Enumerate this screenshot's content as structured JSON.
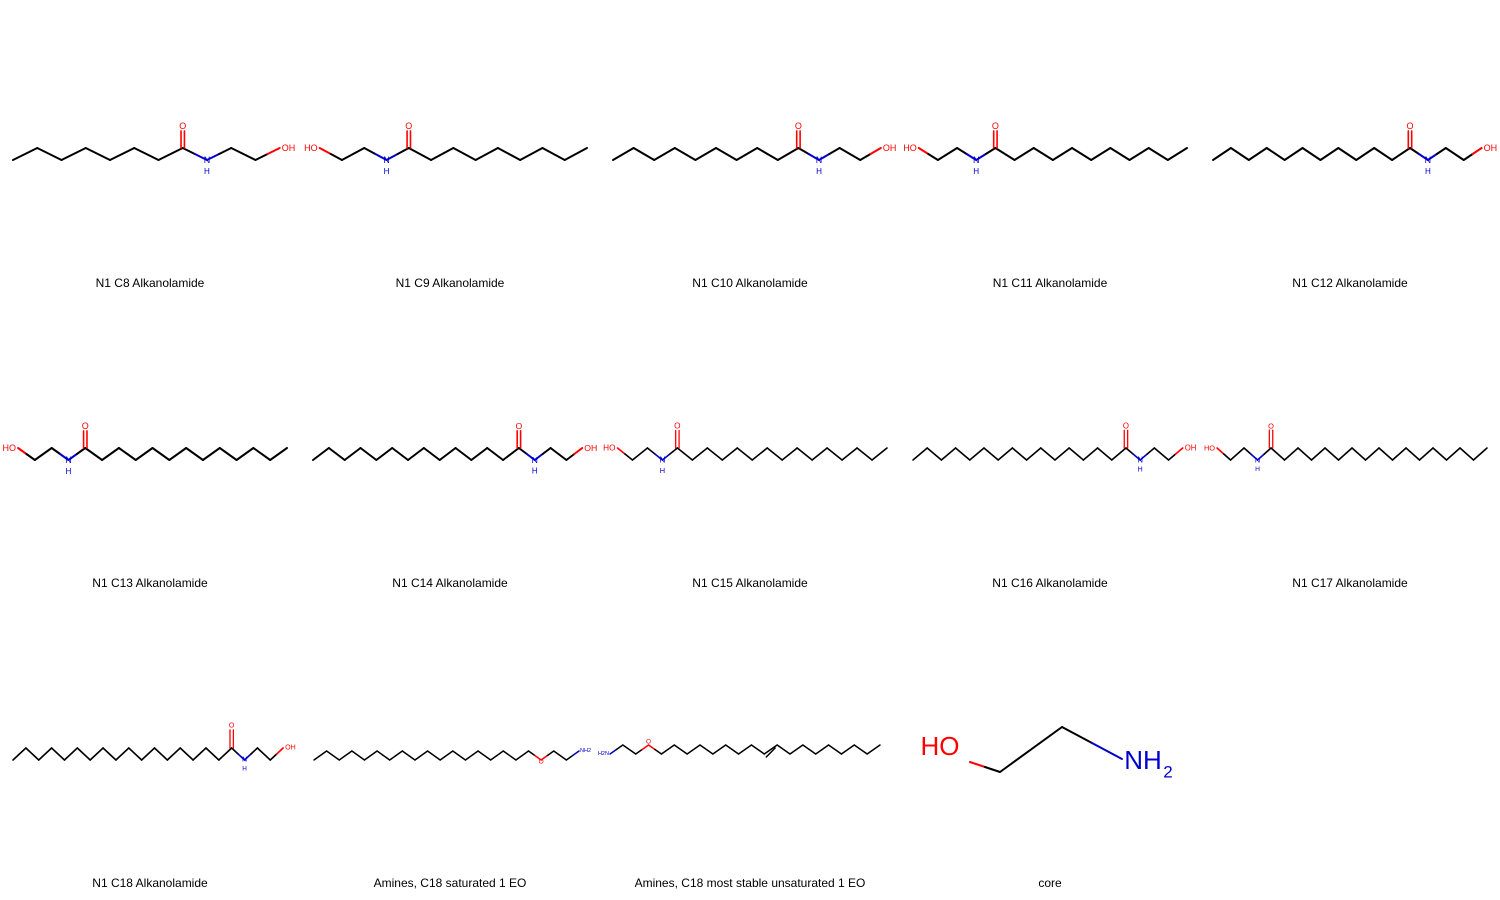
{
  "colors": {
    "bond": "#000000",
    "oxygen": "#ff0000",
    "nitrogen": "#0000cc",
    "background": "#ffffff"
  },
  "molecules": [
    {
      "legend": "N1 C8 Alkanolamide",
      "atom_labels": [
        "O",
        "H",
        "N",
        "OH"
      ]
    },
    {
      "legend": "N1 C9 Alkanolamide",
      "atom_labels": [
        "HO",
        "H",
        "N",
        "O"
      ]
    },
    {
      "legend": "N1 C10 Alkanolamide",
      "atom_labels": [
        "O",
        "H",
        "N",
        "OH"
      ]
    },
    {
      "legend": "N1 C11 Alkanolamide",
      "atom_labels": [
        "HO",
        "H",
        "N",
        "O"
      ]
    },
    {
      "legend": "N1 C12 Alkanolamide",
      "atom_labels": [
        "O",
        "H",
        "N",
        "OH"
      ]
    },
    {
      "legend": "N1 C13 Alkanolamide",
      "atom_labels": [
        "HO",
        "H",
        "N",
        "O"
      ]
    },
    {
      "legend": "N1 C14 Alkanolamide",
      "atom_labels": [
        "O",
        "H",
        "N",
        "OH"
      ]
    },
    {
      "legend": "N1 C15 Alkanolamide",
      "atom_labels": [
        "HO",
        "H",
        "N",
        "O"
      ]
    },
    {
      "legend": "N1 C16 Alkanolamide",
      "atom_labels": [
        "O",
        "H",
        "N",
        "OH"
      ]
    },
    {
      "legend": "N1 C17 Alkanolamide",
      "atom_labels": [
        "HO",
        "H",
        "N",
        "O"
      ]
    },
    {
      "legend": "N1 C18 Alkanolamide",
      "atom_labels": [
        "O",
        "H",
        "N",
        "OH"
      ]
    },
    {
      "legend": "Amines, C18 saturated 1 EO",
      "atom_labels": [
        "O",
        "NH2"
      ]
    },
    {
      "legend": "Amines, C18 most stable unsaturated 1 EO",
      "atom_labels": [
        "H2N",
        "O"
      ]
    },
    {
      "legend": "core",
      "atom_labels": [
        "HO",
        "NH",
        "2"
      ]
    }
  ]
}
